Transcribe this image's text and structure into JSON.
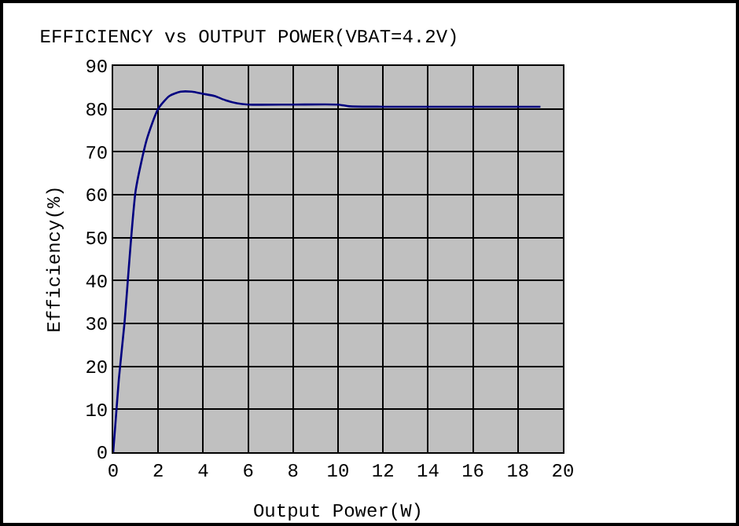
{
  "chart_data": {
    "type": "line",
    "title": "EFFICIENCY vs OUTPUT POWER(VBAT=4.2V)",
    "xlabel": "Output Power(W)",
    "ylabel": "Efficiency(%)",
    "x": [
      0,
      0.25,
      0.5,
      1,
      1.5,
      2,
      2.5,
      3,
      3.5,
      4,
      4.5,
      5,
      5.5,
      6,
      8,
      10,
      10.5,
      12,
      14,
      16,
      18,
      19
    ],
    "series": [
      {
        "color": "#000080",
        "values": [
          0,
          17,
          30,
          61,
          73,
          80,
          83,
          84,
          84,
          83.5,
          83,
          82,
          81.3,
          81,
          81,
          81,
          80.6,
          80.5,
          80.5,
          80.5,
          80.5,
          80.5
        ]
      }
    ],
    "xlim": [
      0,
      20
    ],
    "xticks": [
      0,
      2,
      4,
      6,
      8,
      10,
      12,
      14,
      16,
      18,
      20
    ],
    "ylim": [
      0,
      90
    ],
    "yticks": [
      0,
      10,
      20,
      30,
      40,
      50,
      60,
      70,
      80,
      90
    ],
    "grid": true,
    "marker": "none"
  }
}
